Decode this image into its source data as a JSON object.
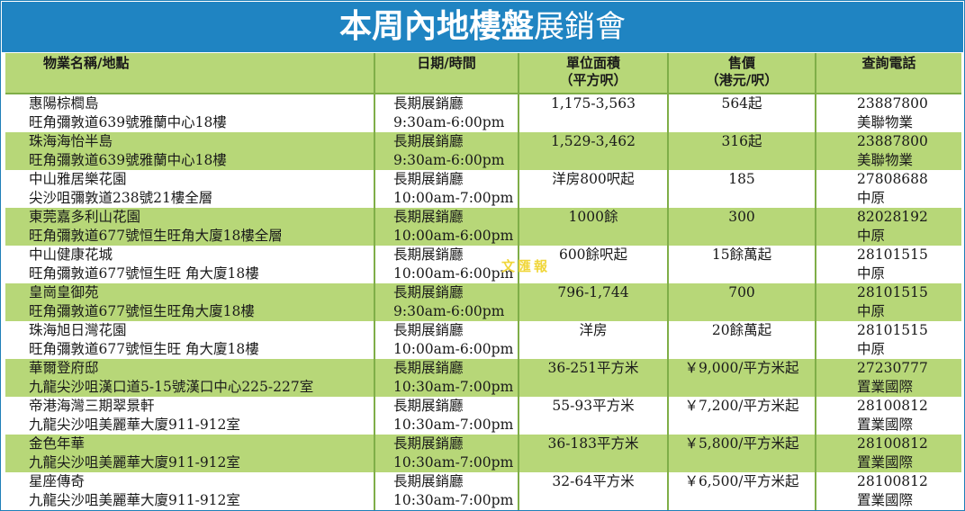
{
  "title": {
    "bold": "本周內地樓盤",
    "light": "展銷會"
  },
  "headers": {
    "name": "物業名稱/地點",
    "date": "日期/時間",
    "area_line1": "單位面積",
    "area_line2": "（平方呎）",
    "price_line1": "售價",
    "price_line2": "（港元/呎）",
    "phone": "查詢電話"
  },
  "rows": [
    {
      "name": "惠陽棕櫚島",
      "address": "旺角彌敦道639號雅蘭中心18樓",
      "venue": "長期展銷廳",
      "time": "9:30am-6:00pm",
      "area": "1,175-3,563",
      "price": "564起",
      "phone": "23887800",
      "agent": "美聯物業"
    },
    {
      "name": "珠海海怡半島",
      "address": "旺角彌敦道639號雅蘭中心18樓",
      "venue": "長期展銷廳",
      "time": "9:30am-6:00pm",
      "area": "1,529-3,462",
      "price": "316起",
      "phone": "23887800",
      "agent": "美聯物業"
    },
    {
      "name": "中山雅居樂花園",
      "address": "尖沙咀彌敦道238號21樓全層",
      "venue": "長期展銷廳",
      "time": "10:00am-7:00pm",
      "area": "洋房800呎起",
      "price": "185",
      "phone": "27808688",
      "agent": "中原"
    },
    {
      "name": "東莞嘉多利山花園",
      "address": "旺角彌敦道677號恒生旺角大廈18樓全層",
      "venue": "長期展銷廳",
      "time": "10:00am-6:00pm",
      "area": "1000餘",
      "price": "300",
      "phone": "82028192",
      "agent": "中原"
    },
    {
      "name": "中山健康花城",
      "address": "旺角彌敦道677號恒生旺 角大廈18樓",
      "venue": "長期展銷廳",
      "time": "10:00am-6:00pm",
      "area": "600餘呎起",
      "price": "15餘萬起",
      "phone": "28101515",
      "agent": "中原"
    },
    {
      "name": "皇崗皇御苑",
      "address": "旺角彌敦道677號恒生旺角大廈18樓",
      "venue": "長期展銷廳",
      "time": "9:30am-6:00pm",
      "area": "796-1,744",
      "price": "700",
      "phone": "28101515",
      "agent": "中原"
    },
    {
      "name": "珠海旭日灣花園",
      "address": "旺角彌敦道677號恒生旺 角大廈18樓",
      "venue": "長期展銷廳",
      "time": "10:00am-6:00pm",
      "area": "洋房",
      "price": "20餘萬起",
      "phone": "28101515",
      "agent": "中原"
    },
    {
      "name": "華爾登府邸",
      "address": "九龍尖沙咀漢口道5-15號漢口中心225-227室",
      "venue": "長期展銷廳",
      "time": "10:30am-7:00pm",
      "area": "36-251平方米",
      "price": "￥9,000/平方米起",
      "phone": "27230777",
      "agent": "置業國際"
    },
    {
      "name": "帝港海灣三期翠景軒",
      "address": "九龍尖沙咀美麗華大廈911-912室",
      "venue": "長期展銷廳",
      "time": "10:30am-7:00pm",
      "area": "55-93平方米",
      "price": "￥7,200/平方米起",
      "phone": "28100812",
      "agent": "置業國際"
    },
    {
      "name": "金色年華",
      "address": "九龍尖沙咀美麗華大廈911-912室",
      "venue": "長期展銷廳",
      "time": "10:30am-7:00pm",
      "area": "36-183平方米",
      "price": "￥5,800/平方米起",
      "phone": "28100812",
      "agent": "置業國際"
    },
    {
      "name": "星座傳奇",
      "address": "九龍尖沙咀美麗華大廈911-912室",
      "venue": "長期展銷廳",
      "time": "10:30am-7:00pm",
      "area": "32-64平方米",
      "price": "￥6,500/平方米起",
      "phone": "28100812",
      "agent": "置業國際"
    }
  ],
  "watermark": "文匯報",
  "colors": {
    "title_bg": "#1f84c2",
    "row_green": "#b7d778",
    "divider": "#7fae48"
  }
}
